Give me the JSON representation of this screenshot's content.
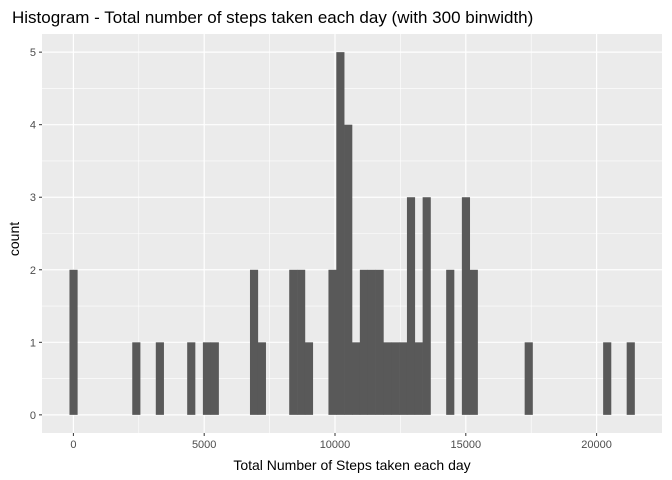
{
  "chart_data": {
    "type": "bar",
    "title": "Histogram - Total number of steps taken each day (with 300 binwidth)",
    "xlabel": "Total Number of Steps taken each day",
    "ylabel": "count",
    "binwidth": 300,
    "xlim": [
      -1200,
      22500
    ],
    "ylim": [
      -0.25,
      5.25
    ],
    "xticks": [
      0,
      5000,
      10000,
      15000,
      20000
    ],
    "xtick_labels": [
      "0",
      "5000",
      "10000",
      "15000",
      "20000"
    ],
    "yticks": [
      0,
      1,
      2,
      3,
      4,
      5
    ],
    "ytick_labels": [
      "0",
      "1",
      "2",
      "3",
      "4",
      "5"
    ],
    "grid": true,
    "bar_color": "#595959",
    "panel_color": "#ebebeb",
    "bins": [
      {
        "x": 0,
        "count": 2
      },
      {
        "x": 2400,
        "count": 1
      },
      {
        "x": 3300,
        "count": 1
      },
      {
        "x": 4500,
        "count": 1
      },
      {
        "x": 5100,
        "count": 1
      },
      {
        "x": 5400,
        "count": 1
      },
      {
        "x": 6900,
        "count": 2
      },
      {
        "x": 7200,
        "count": 1
      },
      {
        "x": 8400,
        "count": 2
      },
      {
        "x": 8700,
        "count": 2
      },
      {
        "x": 9000,
        "count": 1
      },
      {
        "x": 9900,
        "count": 2
      },
      {
        "x": 10200,
        "count": 5
      },
      {
        "x": 10500,
        "count": 4
      },
      {
        "x": 10800,
        "count": 1
      },
      {
        "x": 11100,
        "count": 2
      },
      {
        "x": 11400,
        "count": 2
      },
      {
        "x": 11700,
        "count": 2
      },
      {
        "x": 12000,
        "count": 1
      },
      {
        "x": 12300,
        "count": 1
      },
      {
        "x": 12600,
        "count": 1
      },
      {
        "x": 12900,
        "count": 3
      },
      {
        "x": 13200,
        "count": 1
      },
      {
        "x": 13500,
        "count": 3
      },
      {
        "x": 14400,
        "count": 2
      },
      {
        "x": 15000,
        "count": 3
      },
      {
        "x": 15300,
        "count": 2
      },
      {
        "x": 17400,
        "count": 1
      },
      {
        "x": 20400,
        "count": 1
      },
      {
        "x": 21300,
        "count": 1
      }
    ]
  }
}
